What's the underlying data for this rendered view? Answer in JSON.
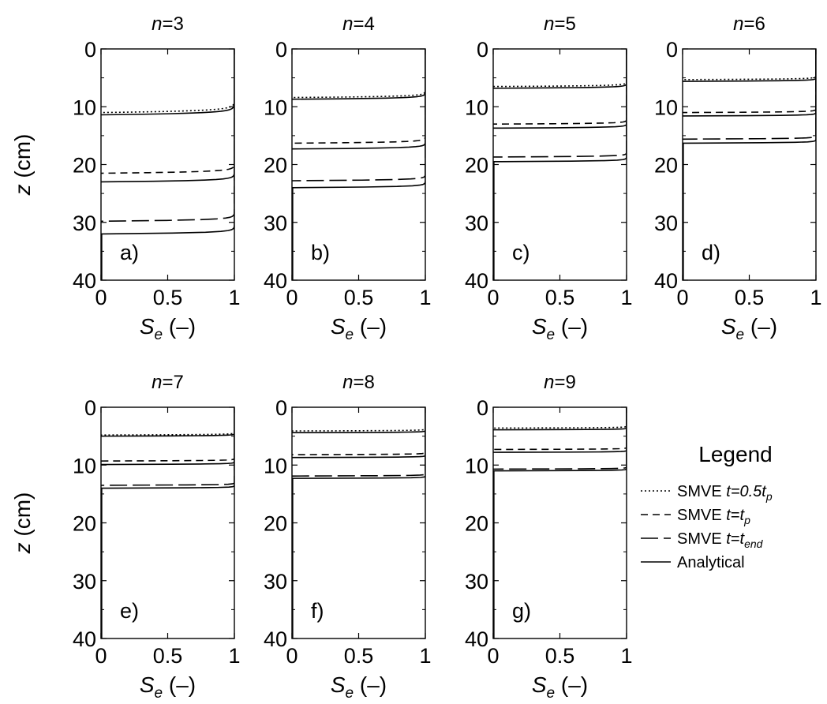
{
  "figure": {
    "legend": {
      "title": "Legend",
      "placement": "right",
      "entries": [
        {
          "key": "s05",
          "prefix": "SMVE ",
          "t": "t",
          "eq": "=0.5",
          "sub_var": "t",
          "sub": "p",
          "dash": "dotted"
        },
        {
          "key": "stp",
          "prefix": "SMVE ",
          "t": "t",
          "eq": "=",
          "sub_var": "t",
          "sub": "p",
          "dash": "short-dash"
        },
        {
          "key": "send",
          "prefix": "SMVE ",
          "t": "t",
          "eq": "=",
          "sub_var": "t",
          "sub": "end",
          "dash": "long-dash"
        },
        {
          "key": "ana",
          "prefix": "",
          "t": "",
          "eq": "",
          "sub_var": "",
          "sub": "",
          "label": "Analytical",
          "dash": "solid"
        }
      ]
    }
  },
  "chart_data": [
    {
      "type": "line",
      "title_var": "n",
      "title_eq": "=3",
      "letter": "a)",
      "xlabel_var": "S",
      "xlabel_sub": "e",
      "xlabel_unit": " (–)",
      "ylabel_var": "z",
      "ylabel_unit": " (cm)",
      "xlim": [
        0,
        1
      ],
      "ylim": [
        0,
        40
      ],
      "y_inverted": true,
      "xticks": [
        "0",
        "0.5",
        "1"
      ],
      "yticks": [
        "0",
        "10",
        "20",
        "30",
        "40"
      ],
      "show_yticks": true,
      "series": [
        {
          "legend": "s05",
          "front": 11.0,
          "k": 0.28
        },
        {
          "legend": "stp",
          "front": 21.5,
          "k": 0.22
        },
        {
          "legend": "send",
          "front": 29.8,
          "k": 0.2
        },
        {
          "legend": "ana",
          "front": 11.4,
          "k": 0.27
        },
        {
          "legend": "ana",
          "front": 23.0,
          "k": 0.21
        },
        {
          "legend": "ana",
          "front": 32.0,
          "k": 0.19
        }
      ]
    },
    {
      "type": "line",
      "title_var": "n",
      "title_eq": "=4",
      "letter": "b)",
      "xlabel_var": "S",
      "xlabel_sub": "e",
      "xlabel_unit": " (–)",
      "ylabel_var": "",
      "ylabel_unit": "",
      "xlim": [
        0,
        1
      ],
      "ylim": [
        0,
        40
      ],
      "y_inverted": true,
      "xticks": [
        "0",
        "0.5",
        "1"
      ],
      "yticks": [
        "0",
        "10",
        "20",
        "30",
        "40"
      ],
      "show_yticks": true,
      "series": [
        {
          "legend": "s05",
          "front": 8.4,
          "k": 0.16
        },
        {
          "legend": "stp",
          "front": 16.3,
          "k": 0.15
        },
        {
          "legend": "send",
          "front": 22.8,
          "k": 0.14
        },
        {
          "legend": "ana",
          "front": 8.7,
          "k": 0.16
        },
        {
          "legend": "ana",
          "front": 17.3,
          "k": 0.15
        },
        {
          "legend": "ana",
          "front": 24.0,
          "k": 0.14
        }
      ]
    },
    {
      "type": "line",
      "title_var": "n",
      "title_eq": "=5",
      "letter": "c)",
      "xlabel_var": "S",
      "xlabel_sub": "e",
      "xlabel_unit": " (–)",
      "ylabel_var": "",
      "ylabel_unit": "",
      "xlim": [
        0,
        1
      ],
      "ylim": [
        0,
        40
      ],
      "y_inverted": true,
      "xticks": [
        "0",
        "0.5",
        "1"
      ],
      "yticks": [
        "0",
        "10",
        "20",
        "30",
        "40"
      ],
      "show_yticks": true,
      "series": [
        {
          "legend": "s05",
          "front": 6.5,
          "k": 0.11
        },
        {
          "legend": "stp",
          "front": 13.0,
          "k": 0.1
        },
        {
          "legend": "send",
          "front": 18.7,
          "k": 0.1
        },
        {
          "legend": "ana",
          "front": 6.8,
          "k": 0.11
        },
        {
          "legend": "ana",
          "front": 13.7,
          "k": 0.1
        },
        {
          "legend": "ana",
          "front": 19.5,
          "k": 0.1
        }
      ]
    },
    {
      "type": "line",
      "title_var": "n",
      "title_eq": "=6",
      "letter": "d)",
      "xlabel_var": "S",
      "xlabel_sub": "e",
      "xlabel_unit": " (–)",
      "ylabel_var": "",
      "ylabel_unit": "",
      "xlim": [
        0,
        1
      ],
      "ylim": [
        0,
        40
      ],
      "y_inverted": true,
      "xticks": [
        "0",
        "0.5",
        "1"
      ],
      "yticks": [
        "0",
        "10",
        "20",
        "30",
        "40"
      ],
      "show_yticks": true,
      "series": [
        {
          "legend": "s05",
          "front": 5.3,
          "k": 0.08
        },
        {
          "legend": "stp",
          "front": 11.0,
          "k": 0.08
        },
        {
          "legend": "send",
          "front": 15.6,
          "k": 0.08
        },
        {
          "legend": "ana",
          "front": 5.6,
          "k": 0.08
        },
        {
          "legend": "ana",
          "front": 11.6,
          "k": 0.08
        },
        {
          "legend": "ana",
          "front": 16.3,
          "k": 0.08
        }
      ]
    },
    {
      "type": "line",
      "title_var": "n",
      "title_eq": "=7",
      "letter": "e)",
      "xlabel_var": "S",
      "xlabel_sub": "e",
      "xlabel_unit": " (–)",
      "ylabel_var": "z",
      "ylabel_unit": " (cm)",
      "xlim": [
        0,
        1
      ],
      "ylim": [
        0,
        40
      ],
      "y_inverted": true,
      "xticks": [
        "0",
        "0.5",
        "1"
      ],
      "yticks": [
        "0",
        "10",
        "20",
        "30",
        "40"
      ],
      "show_yticks": true,
      "series": [
        {
          "legend": "s05",
          "front": 4.8,
          "k": 0.06
        },
        {
          "legend": "stp",
          "front": 9.3,
          "k": 0.06
        },
        {
          "legend": "send",
          "front": 13.5,
          "k": 0.06
        },
        {
          "legend": "ana",
          "front": 5.0,
          "k": 0.06
        },
        {
          "legend": "ana",
          "front": 9.9,
          "k": 0.06
        },
        {
          "legend": "ana",
          "front": 14.0,
          "k": 0.06
        }
      ]
    },
    {
      "type": "line",
      "title_var": "n",
      "title_eq": "=8",
      "letter": "f)",
      "xlabel_var": "S",
      "xlabel_sub": "e",
      "xlabel_unit": " (–)",
      "ylabel_var": "",
      "ylabel_unit": "",
      "xlim": [
        0,
        1
      ],
      "ylim": [
        0,
        40
      ],
      "y_inverted": true,
      "xticks": [
        "0",
        "0.5",
        "1"
      ],
      "yticks": [
        "0",
        "10",
        "20",
        "30",
        "40"
      ],
      "show_yticks": true,
      "series": [
        {
          "legend": "s05",
          "front": 4.1,
          "k": 0.05
        },
        {
          "legend": "stp",
          "front": 8.2,
          "k": 0.05
        },
        {
          "legend": "send",
          "front": 11.9,
          "k": 0.05
        },
        {
          "legend": "ana",
          "front": 4.4,
          "k": 0.05
        },
        {
          "legend": "ana",
          "front": 8.7,
          "k": 0.05
        },
        {
          "legend": "ana",
          "front": 12.3,
          "k": 0.05
        }
      ]
    },
    {
      "type": "line",
      "title_var": "n",
      "title_eq": "=9",
      "letter": "g)",
      "xlabel_var": "S",
      "xlabel_sub": "e",
      "xlabel_unit": " (–)",
      "ylabel_var": "",
      "ylabel_unit": "",
      "xlim": [
        0,
        1
      ],
      "ylim": [
        0,
        40
      ],
      "y_inverted": true,
      "xticks": [
        "0",
        "0.5",
        "1"
      ],
      "yticks": [
        "0",
        "10",
        "20",
        "30",
        "40"
      ],
      "show_yticks": true,
      "series": [
        {
          "legend": "s05",
          "front": 3.6,
          "k": 0.045
        },
        {
          "legend": "stp",
          "front": 7.3,
          "k": 0.045
        },
        {
          "legend": "send",
          "front": 10.7,
          "k": 0.045
        },
        {
          "legend": "ana",
          "front": 3.9,
          "k": 0.045
        },
        {
          "legend": "ana",
          "front": 7.8,
          "k": 0.045
        },
        {
          "legend": "ana",
          "front": 11.0,
          "k": 0.045
        }
      ]
    }
  ]
}
